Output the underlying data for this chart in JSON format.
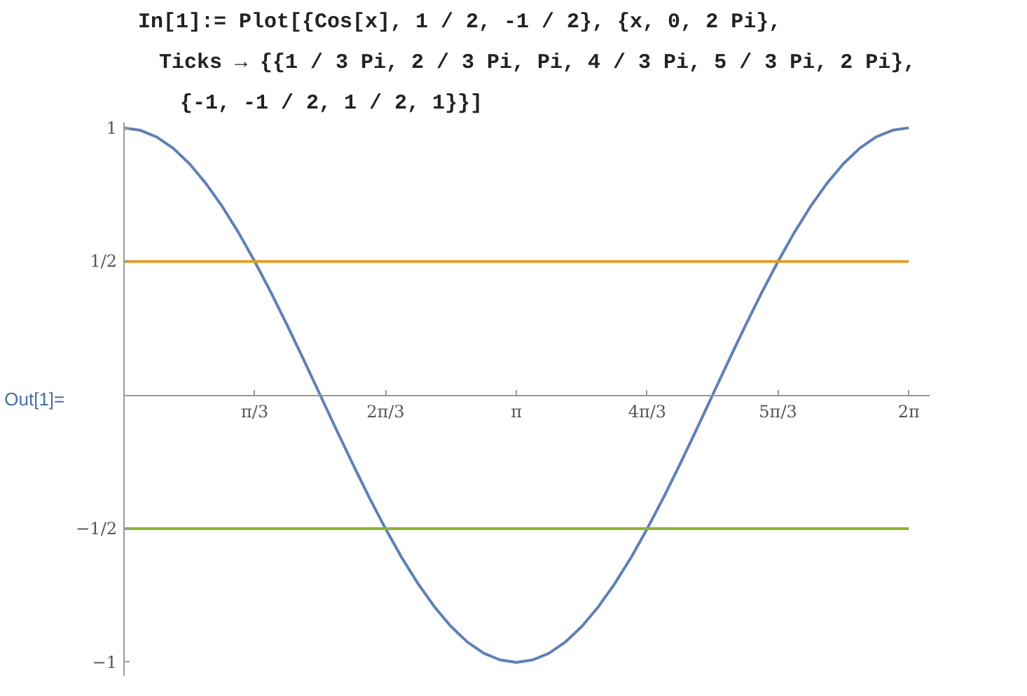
{
  "chart_data": {
    "type": "line",
    "annotations": [
      "In[1]:=",
      "Plot[{Cos[x], 1 / 2, -1 / 2}, {x, 0, 2 Pi},",
      "Ticks → {{1 / 3 Pi, 2 / 3 Pi, Pi, 4 / 3 Pi, 5 / 3 Pi, 2 Pi},",
      "{-1, -1 / 2, 1 / 2, 1}}]",
      "Out[1]="
    ],
    "x": [
      0,
      0.131,
      0.262,
      0.393,
      0.524,
      0.654,
      0.785,
      0.916,
      1.047,
      1.178,
      1.309,
      1.44,
      1.571,
      1.702,
      1.833,
      1.963,
      2.094,
      2.225,
      2.356,
      2.487,
      2.618,
      2.749,
      2.88,
      3.011,
      3.142,
      3.272,
      3.403,
      3.534,
      3.665,
      3.796,
      3.927,
      4.058,
      4.189,
      4.32,
      4.451,
      4.581,
      4.712,
      4.843,
      4.974,
      5.105,
      5.236,
      5.367,
      5.498,
      5.629,
      5.76,
      5.891,
      6.021,
      6.152,
      6.283
    ],
    "series": [
      {
        "color": "#5e81b5",
        "values": [
          1,
          0.991,
          0.966,
          0.924,
          0.866,
          0.793,
          0.707,
          0.609,
          0.5,
          0.383,
          0.259,
          0.131,
          0,
          -0.131,
          -0.259,
          -0.383,
          -0.5,
          -0.609,
          -0.707,
          -0.793,
          -0.866,
          -0.924,
          -0.966,
          -0.991,
          -1,
          -0.991,
          -0.966,
          -0.924,
          -0.866,
          -0.793,
          -0.707,
          -0.609,
          -0.5,
          -0.383,
          -0.259,
          -0.131,
          0,
          0.131,
          0.259,
          0.383,
          0.5,
          0.609,
          0.707,
          0.793,
          0.866,
          0.924,
          0.966,
          0.991,
          1
        ]
      },
      {
        "color": "#e19c24",
        "values": [
          0.5,
          0.5,
          0.5,
          0.5,
          0.5,
          0.5,
          0.5,
          0.5,
          0.5,
          0.5,
          0.5,
          0.5,
          0.5,
          0.5,
          0.5,
          0.5,
          0.5,
          0.5,
          0.5,
          0.5,
          0.5,
          0.5,
          0.5,
          0.5,
          0.5,
          0.5,
          0.5,
          0.5,
          0.5,
          0.5,
          0.5,
          0.5,
          0.5,
          0.5,
          0.5,
          0.5,
          0.5,
          0.5,
          0.5,
          0.5,
          0.5,
          0.5,
          0.5,
          0.5,
          0.5,
          0.5,
          0.5,
          0.5,
          0.5
        ]
      },
      {
        "color": "#8fb032",
        "values": [
          -0.5,
          -0.5,
          -0.5,
          -0.5,
          -0.5,
          -0.5,
          -0.5,
          -0.5,
          -0.5,
          -0.5,
          -0.5,
          -0.5,
          -0.5,
          -0.5,
          -0.5,
          -0.5,
          -0.5,
          -0.5,
          -0.5,
          -0.5,
          -0.5,
          -0.5,
          -0.5,
          -0.5,
          -0.5,
          -0.5,
          -0.5,
          -0.5,
          -0.5,
          -0.5,
          -0.5,
          -0.5,
          -0.5,
          -0.5,
          -0.5,
          -0.5,
          -0.5,
          -0.5,
          -0.5,
          -0.5,
          -0.5,
          -0.5,
          -0.5,
          -0.5,
          -0.5,
          -0.5,
          -0.5,
          -0.5,
          -0.5
        ]
      }
    ],
    "xlim": [
      0,
      6.45
    ],
    "ylim": [
      -1.05,
      1.02
    ],
    "xticks": [
      {
        "value": 1.047,
        "label": "π/3"
      },
      {
        "value": 2.094,
        "label": "2π/3"
      },
      {
        "value": 3.142,
        "label": "π"
      },
      {
        "value": 4.189,
        "label": "4π/3"
      },
      {
        "value": 5.236,
        "label": "5π/3"
      },
      {
        "value": 6.283,
        "label": "2π"
      }
    ],
    "yticks": [
      {
        "value": -1,
        "label": "−1"
      },
      {
        "value": -0.5,
        "label": "−1/2"
      },
      {
        "value": 0.5,
        "label": "1/2"
      },
      {
        "value": 1,
        "label": "1"
      }
    ],
    "grid": false,
    "marker": "none",
    "line_style": "solid"
  }
}
